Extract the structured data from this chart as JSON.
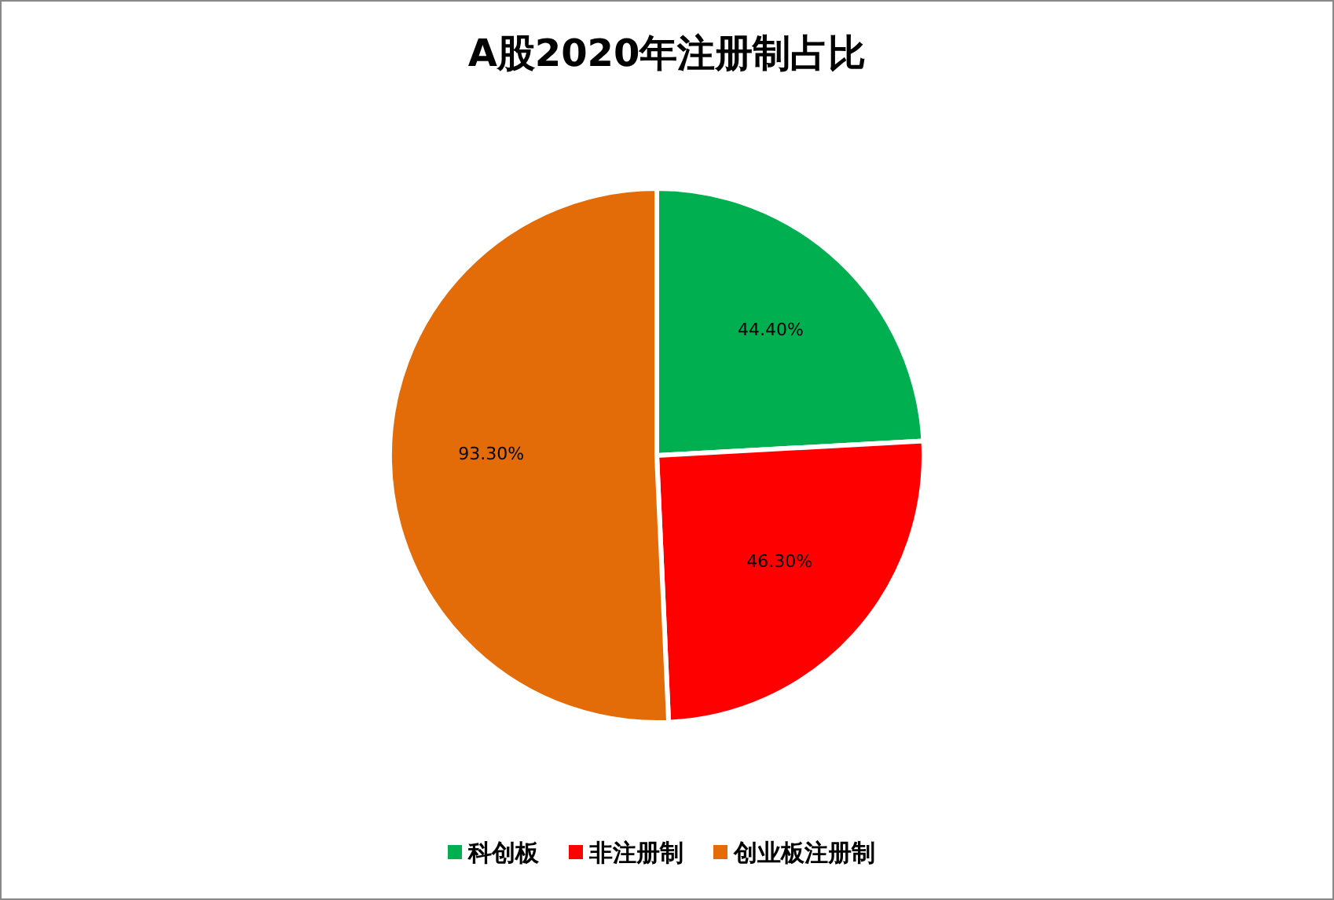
{
  "chart_data": {
    "type": "pie",
    "title": "A股2020年注册制占比",
    "categories": [
      "科创板",
      "非注册制",
      "创业板注册制"
    ],
    "values": [
      44.4,
      46.3,
      93.3
    ],
    "value_labels": [
      "44.40%",
      "46.30%",
      "93.30%"
    ],
    "colors": [
      "#00b050",
      "#ff0000",
      "#e36c09"
    ],
    "legend": "bottom"
  }
}
